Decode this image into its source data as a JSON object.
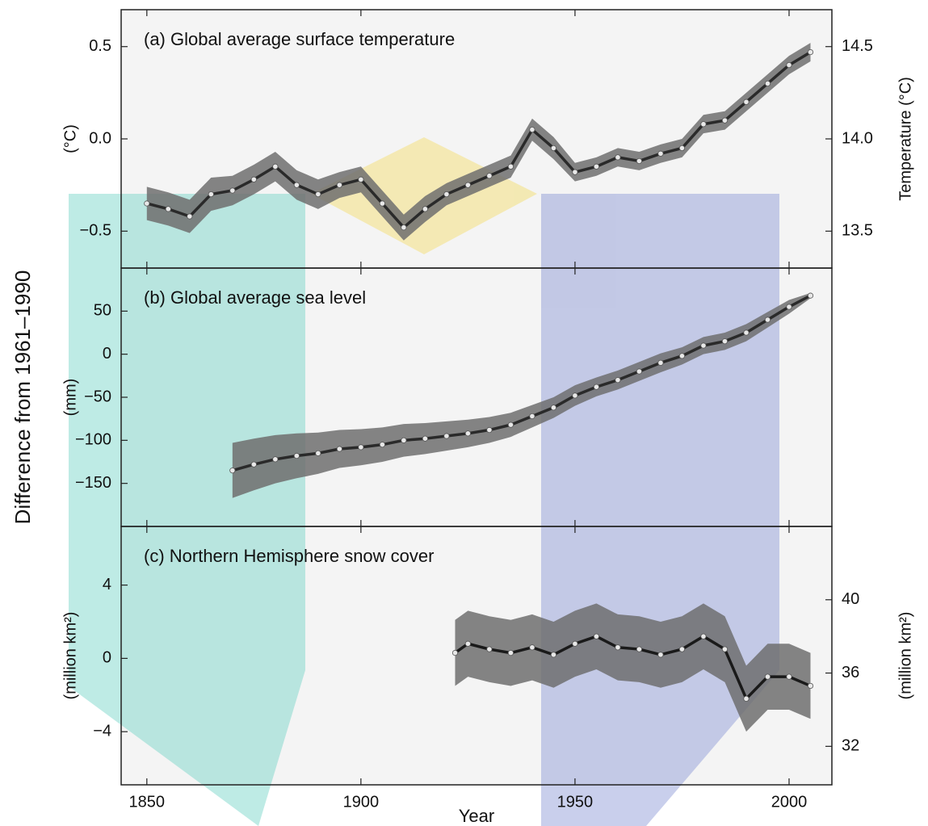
{
  "y_label": "Difference from 1961–1990",
  "x_label": "Year",
  "xlim": [
    1844,
    2010
  ],
  "xticks": [
    1850,
    1900,
    1950,
    2000
  ],
  "chart_data": [
    {
      "type": "line",
      "title": "(a) Global average surface temperature",
      "ylabel": "(°C)",
      "y2label": "Temperature (°C)",
      "ylim": [
        -0.7,
        0.7
      ],
      "yticks": [
        {
          "value": -0.5,
          "label": "−0.5"
        },
        {
          "value": 0,
          "label": "0.0"
        },
        0.5
      ],
      "y2lim": [
        13.3,
        14.7
      ],
      "y2ticks": [
        13.5,
        {
          "value": 14,
          "label": "14.0"
        },
        14.5
      ],
      "x": [
        1850,
        1855,
        1860,
        1865,
        1870,
        1875,
        1880,
        1885,
        1890,
        1895,
        1900,
        1905,
        1910,
        1915,
        1920,
        1925,
        1930,
        1935,
        1940,
        1945,
        1950,
        1955,
        1960,
        1965,
        1970,
        1975,
        1980,
        1985,
        1990,
        1995,
        2000,
        2005
      ],
      "series": [
        {
          "color": "#2a2a2a",
          "band_color": "#6e6e6e",
          "values": [
            -0.35,
            -0.38,
            -0.42,
            -0.3,
            -0.28,
            -0.22,
            -0.15,
            -0.25,
            -0.3,
            -0.25,
            -0.22,
            -0.35,
            -0.48,
            -0.38,
            -0.3,
            -0.25,
            -0.2,
            -0.15,
            0.05,
            -0.05,
            -0.18,
            -0.15,
            -0.1,
            -0.12,
            -0.08,
            -0.05,
            0.08,
            0.1,
            0.2,
            0.3,
            0.4,
            0.47
          ],
          "band": [
            0.09,
            0.09,
            0.09,
            0.09,
            0.08,
            0.08,
            0.08,
            0.08,
            0.08,
            0.07,
            0.07,
            0.07,
            0.07,
            0.07,
            0.06,
            0.06,
            0.06,
            0.06,
            0.06,
            0.06,
            0.05,
            0.05,
            0.05,
            0.05,
            0.05,
            0.05,
            0.05,
            0.05,
            0.05,
            0.05,
            0.05,
            0.05
          ]
        }
      ]
    },
    {
      "type": "line",
      "title": "(b) Global average sea level",
      "ylabel": "(mm)",
      "ylim": [
        -200,
        100
      ],
      "yticks": [
        {
          "value": -150,
          "label": "−150"
        },
        {
          "value": -100,
          "label": "−100"
        },
        {
          "value": -50,
          "label": "−50"
        },
        0,
        50
      ],
      "x": [
        1870,
        1875,
        1880,
        1885,
        1890,
        1895,
        1900,
        1905,
        1910,
        1915,
        1920,
        1925,
        1930,
        1935,
        1940,
        1945,
        1950,
        1955,
        1960,
        1965,
        1970,
        1975,
        1980,
        1985,
        1990,
        1995,
        2000,
        2005
      ],
      "series": [
        {
          "color": "#2a2a2a",
          "band_color": "#6e6e6e",
          "values": [
            -135,
            -128,
            -122,
            -118,
            -115,
            -110,
            -108,
            -105,
            -100,
            -98,
            -95,
            -92,
            -88,
            -82,
            -72,
            -62,
            -48,
            -38,
            -30,
            -20,
            -10,
            -2,
            10,
            15,
            25,
            40,
            55,
            68
          ],
          "band": [
            32,
            30,
            28,
            26,
            24,
            22,
            21,
            20,
            19,
            18,
            17,
            16,
            15,
            14,
            13,
            12,
            12,
            11,
            11,
            11,
            11,
            10,
            10,
            10,
            10,
            9,
            8,
            3
          ]
        }
      ]
    },
    {
      "type": "line",
      "title": "(c) Northern Hemisphere snow cover",
      "ylabel": "(million km²)",
      "y2label": "(million km²)",
      "ylim": [
        -6.9,
        7.2
      ],
      "yticks": [
        {
          "value": -4,
          "label": "−4"
        },
        0,
        4
      ],
      "y2lim": [
        29.9,
        44
      ],
      "y2ticks": [
        32,
        36,
        40
      ],
      "x": [
        1922,
        1925,
        1930,
        1935,
        1940,
        1945,
        1950,
        1955,
        1960,
        1965,
        1970,
        1975,
        1980,
        1985,
        1990,
        1995,
        2000,
        2005
      ],
      "series": [
        {
          "color": "#1a1a1a",
          "band_color": "#6e6e6e",
          "values": [
            0.3,
            0.8,
            0.5,
            0.3,
            0.6,
            0.2,
            0.8,
            1.2,
            0.6,
            0.5,
            0.2,
            0.5,
            1.2,
            0.5,
            -2.2,
            -1.0,
            -1.0,
            -1.5
          ],
          "band": [
            1.8,
            1.8,
            1.8,
            1.8,
            1.8,
            1.8,
            1.8,
            1.8,
            1.8,
            1.8,
            1.8,
            1.8,
            1.8,
            1.8,
            1.8,
            1.8,
            1.8,
            1.8
          ]
        }
      ]
    }
  ]
}
